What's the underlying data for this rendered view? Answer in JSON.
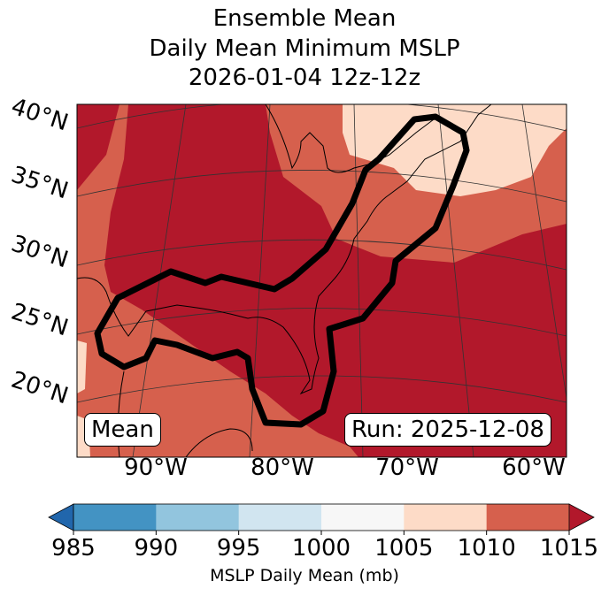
{
  "title": {
    "line1": "Ensemble Mean",
    "line2": "Daily Mean Minimum MSLP",
    "line3": "2026-01-04 12z-12z"
  },
  "map": {
    "lat_labels": [
      "40°N",
      "35°N",
      "30°N",
      "25°N",
      "20°N"
    ],
    "lon_labels": [
      "90°W",
      "80°W",
      "70°W",
      "60°W"
    ],
    "mean_label": "Mean",
    "run_label": "Run: 2025-12-08",
    "colors": {
      "high": "#b2182b",
      "mid": "#d6604d",
      "low": "#fddbc7",
      "contour": "#000000"
    }
  },
  "colorbar": {
    "label": "MSLP Daily Mean (mb)",
    "ticks": [
      "985",
      "990",
      "995",
      "1000",
      "1005",
      "1010",
      "1015"
    ],
    "colors": [
      "#4393c3",
      "#92c5de",
      "#d1e5f0",
      "#f7f7f7",
      "#fddbc7",
      "#d6604d"
    ],
    "under_color": "#2166ac",
    "over_color": "#b2182b"
  }
}
